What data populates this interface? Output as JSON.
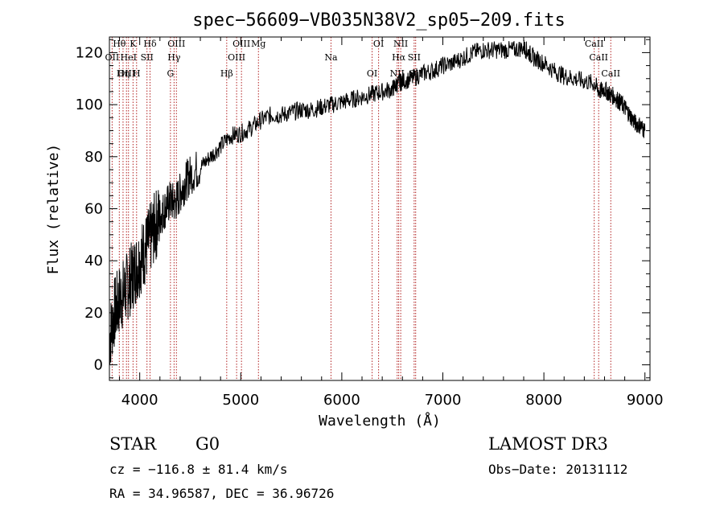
{
  "chart_data": {
    "type": "line",
    "title": "spec−56609−VB035N38V2_sp05−209.fits",
    "xlabel": "Wavelength (Å)",
    "ylabel": "Flux (relative)",
    "xlim": [
      3700,
      9050
    ],
    "ylim": [
      -6,
      126
    ],
    "x_ticks": [
      4000,
      5000,
      6000,
      7000,
      8000,
      9000
    ],
    "y_ticks": [
      0,
      20,
      40,
      60,
      80,
      100,
      120
    ],
    "x_tick_labels": [
      "4000",
      "5000",
      "6000",
      "7000",
      "8000",
      "9000"
    ],
    "y_tick_labels": [
      "0",
      "20",
      "40",
      "60",
      "80",
      "100",
      "120"
    ],
    "grid": false,
    "line_color": "#000000",
    "marker_color": "#b22222",
    "series": [
      {
        "name": "flux",
        "x": [
          3700,
          3750,
          3800,
          3850,
          3900,
          3950,
          4000,
          4050,
          4100,
          4150,
          4200,
          4250,
          4300,
          4350,
          4400,
          4450,
          4500,
          4600,
          4700,
          4800,
          4900,
          5000,
          5100,
          5200,
          5300,
          5400,
          5500,
          5600,
          5700,
          5800,
          5900,
          6000,
          6100,
          6200,
          6300,
          6400,
          6500,
          6550,
          6600,
          6700,
          6800,
          6900,
          7000,
          7100,
          7200,
          7300,
          7400,
          7500,
          7600,
          7700,
          7800,
          7850,
          7900,
          8000,
          8100,
          8200,
          8300,
          8400,
          8500,
          8550,
          8600,
          8650,
          8700,
          8750,
          8800,
          8850,
          8900,
          8950,
          9000
        ],
        "y": [
          10,
          20,
          25,
          28,
          32,
          36,
          40,
          44,
          48,
          53,
          57,
          60,
          63,
          62,
          66,
          70,
          73,
          76,
          80,
          84,
          88,
          89,
          91,
          94,
          96,
          96,
          97,
          98,
          98,
          99,
          100,
          101,
          102,
          103,
          104,
          105,
          106,
          108,
          109,
          110,
          112,
          113,
          115,
          116,
          118,
          120,
          121,
          121,
          121,
          121,
          122,
          120,
          118,
          116,
          113,
          111,
          110,
          109,
          108,
          105,
          106,
          104,
          103,
          101,
          99,
          96,
          93,
          92,
          90
        ]
      }
    ],
    "lines": [
      {
        "label": "Hθ",
        "x": 3798
      },
      {
        "label": "OII",
        "x": 3727
      },
      {
        "label": "OIII",
        "x": 3869
      },
      {
        "label": "K",
        "x": 3934
      },
      {
        "label": "HeI",
        "x": 3889
      },
      {
        "label": "Hη",
        "x": 3835
      },
      {
        "label": "Hδ",
        "x": 4102
      },
      {
        "label": "SII",
        "x": 4072
      },
      {
        "label": "H",
        "x": 3969
      },
      {
        "label": "OIII",
        "x": 4363
      },
      {
        "label": "Hγ",
        "x": 4340
      },
      {
        "label": "G",
        "x": 4304
      },
      {
        "label": "OIII",
        "x": 5007
      },
      {
        "label": "OIII",
        "x": 4959
      },
      {
        "label": "Hβ",
        "x": 4861
      },
      {
        "label": "Mg",
        "x": 5175
      },
      {
        "label": "Na",
        "x": 5893
      },
      {
        "label": "OI",
        "x": 6300
      },
      {
        "label": "OI",
        "x": 6364
      },
      {
        "label": "Hα",
        "x": 6563
      },
      {
        "label": "NII",
        "x": 6548
      },
      {
        "label": "NII",
        "x": 6583
      },
      {
        "label": "SII",
        "x": 6716
      },
      {
        "label": "SII",
        "x": 6731
      },
      {
        "label": "CaII",
        "x": 8498
      },
      {
        "label": "CaII",
        "x": 8542
      },
      {
        "label": "CaII",
        "x": 8662
      }
    ]
  },
  "footer": {
    "class_label": "STAR",
    "subclass": "G0",
    "survey": "LAMOST DR3",
    "cz": "cz = −116.8 ± 81.4 km/s",
    "obs_date": "Obs−Date: 20131112",
    "radec": "RA =  34.96587, DEC =  36.96726"
  }
}
